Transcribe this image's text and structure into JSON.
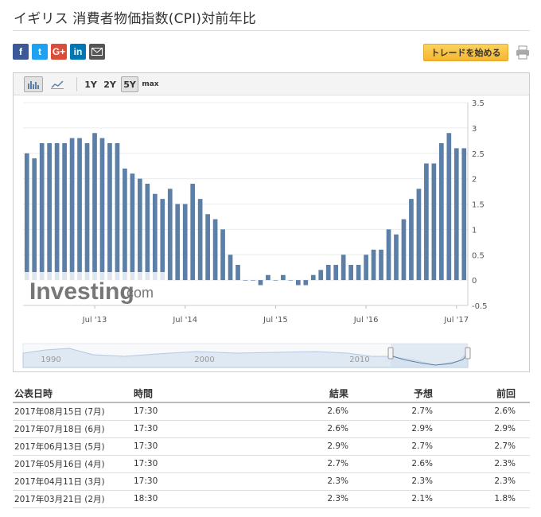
{
  "page": {
    "title": "イギリス 消費者物価指数(CPI)対前年比"
  },
  "share": {
    "facebook": "f",
    "twitter": "t",
    "google": "G+",
    "linkedin": "in"
  },
  "trade_button": "トレードを始める",
  "toolbar": {
    "ranges": [
      "1Y",
      "2Y",
      "5Y",
      "max"
    ],
    "active_range": "5Y"
  },
  "watermark": {
    "brand": "Investing",
    "suffix": ".com"
  },
  "chart_data": {
    "type": "bar",
    "color": "#5b7fa6",
    "y_ticks": [
      "3.5",
      "3",
      "2.5",
      "2",
      "1.5",
      "1",
      "0.5",
      "0",
      "-0.5"
    ],
    "x_ticks": [
      "Jul '13",
      "Jul '14",
      "Jul '15",
      "Jul '16",
      "Jul '17"
    ],
    "ylim": [
      -0.5,
      3.5
    ],
    "x_tick_indices": [
      9,
      21,
      33,
      45,
      57
    ],
    "values": [
      2.5,
      2.4,
      2.7,
      2.7,
      2.7,
      2.7,
      2.8,
      2.8,
      2.7,
      2.9,
      2.8,
      2.7,
      2.7,
      2.2,
      2.1,
      2.0,
      1.9,
      1.7,
      1.6,
      1.8,
      1.5,
      1.5,
      1.9,
      1.6,
      1.3,
      1.2,
      1.0,
      0.5,
      0.3,
      0.0,
      0.0,
      -0.1,
      0.1,
      0.0,
      0.1,
      0.0,
      -0.1,
      -0.1,
      0.1,
      0.2,
      0.3,
      0.3,
      0.5,
      0.3,
      0.3,
      0.5,
      0.6,
      0.6,
      1.0,
      0.9,
      1.2,
      1.6,
      1.8,
      2.3,
      2.3,
      2.7,
      2.9,
      2.6,
      2.6
    ],
    "navigator_labels": [
      "1990",
      "2000",
      "2010"
    ]
  },
  "table": {
    "headers": {
      "date": "公表日時",
      "time": "時間",
      "actual": "結果",
      "forecast": "予想",
      "previous": "前回"
    },
    "rows": [
      {
        "date": "2017年08月15日 (7月)",
        "time": "17:30",
        "actual": "2.6%",
        "actual_color": "green",
        "forecast": "2.7%",
        "previous": "2.6%"
      },
      {
        "date": "2017年07月18日 (6月)",
        "time": "17:30",
        "actual": "2.6%",
        "actual_color": "green",
        "forecast": "2.9%",
        "previous": "2.9%"
      },
      {
        "date": "2017年06月13日 (5月)",
        "time": "17:30",
        "actual": "2.9%",
        "actual_color": "red",
        "forecast": "2.7%",
        "previous": "2.7%"
      },
      {
        "date": "2017年05月16日 (4月)",
        "time": "17:30",
        "actual": "2.7%",
        "actual_color": "red",
        "forecast": "2.6%",
        "previous": "2.3%"
      },
      {
        "date": "2017年04月11日 (3月)",
        "time": "17:30",
        "actual": "2.3%",
        "actual_color": "neutral",
        "forecast": "2.3%",
        "previous": "2.3%"
      },
      {
        "date": "2017年03月21日 (2月)",
        "time": "18:30",
        "actual": "2.3%",
        "actual_color": "red",
        "forecast": "2.1%",
        "previous": "1.8%"
      }
    ]
  }
}
